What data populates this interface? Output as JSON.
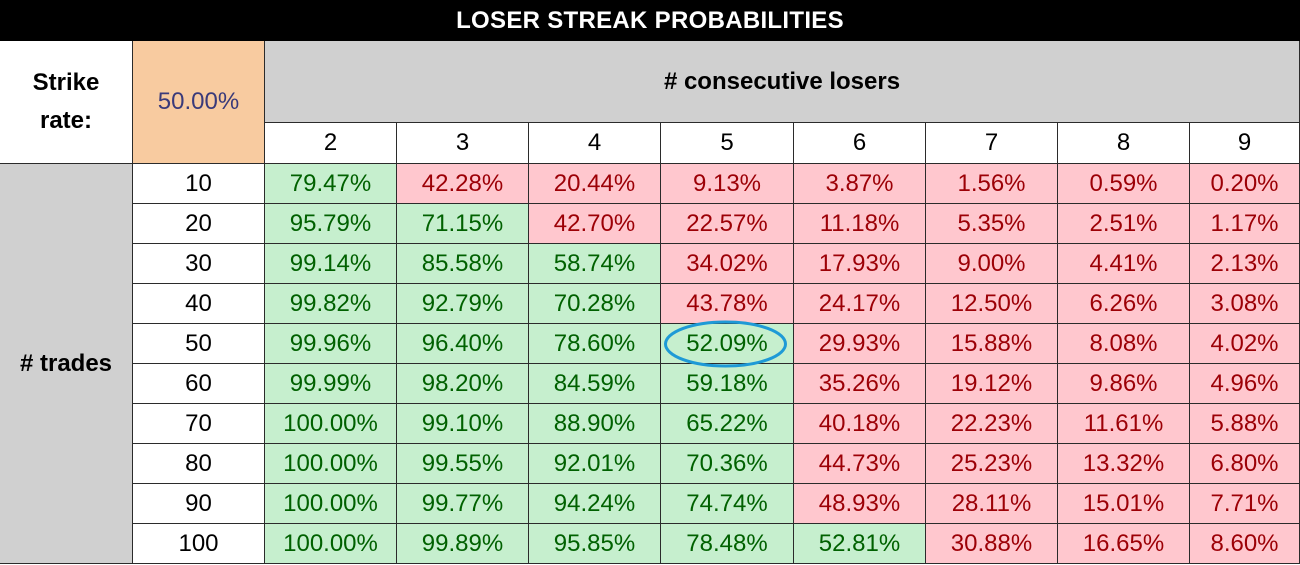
{
  "title": "LOSER STREAK PROBABILITIES",
  "strike_rate_label": "Strike rate:",
  "strike_rate_value": "50.00%",
  "column_group_label": "# consecutive losers",
  "row_group_label": "# trades",
  "colors": {
    "positive_bg": "#c6efce",
    "positive_text": "#006100",
    "negative_bg": "#ffc7ce",
    "negative_text": "#9c0006",
    "highlight": "#1e9ad6"
  },
  "highlighted_cell": {
    "trades": "50",
    "losers": "5"
  },
  "chart_data": {
    "type": "table",
    "title": "LOSER STREAK PROBABILITIES",
    "columns": [
      "2",
      "3",
      "4",
      "5",
      "6",
      "7",
      "8",
      "9"
    ],
    "rows": [
      {
        "trades": "10",
        "values": [
          "79.47%",
          "42.28%",
          "20.44%",
          "9.13%",
          "3.87%",
          "1.56%",
          "0.59%",
          "0.20%"
        ],
        "positive_count": 1
      },
      {
        "trades": "20",
        "values": [
          "95.79%",
          "71.15%",
          "42.70%",
          "22.57%",
          "11.18%",
          "5.35%",
          "2.51%",
          "1.17%"
        ],
        "positive_count": 2
      },
      {
        "trades": "30",
        "values": [
          "99.14%",
          "85.58%",
          "58.74%",
          "34.02%",
          "17.93%",
          "9.00%",
          "4.41%",
          "2.13%"
        ],
        "positive_count": 3
      },
      {
        "trades": "40",
        "values": [
          "99.82%",
          "92.79%",
          "70.28%",
          "43.78%",
          "24.17%",
          "12.50%",
          "6.26%",
          "3.08%"
        ],
        "positive_count": 3
      },
      {
        "trades": "50",
        "values": [
          "99.96%",
          "96.40%",
          "78.60%",
          "52.09%",
          "29.93%",
          "15.88%",
          "8.08%",
          "4.02%"
        ],
        "positive_count": 4
      },
      {
        "trades": "60",
        "values": [
          "99.99%",
          "98.20%",
          "84.59%",
          "59.18%",
          "35.26%",
          "19.12%",
          "9.86%",
          "4.96%"
        ],
        "positive_count": 4
      },
      {
        "trades": "70",
        "values": [
          "100.00%",
          "99.10%",
          "88.90%",
          "65.22%",
          "40.18%",
          "22.23%",
          "11.61%",
          "5.88%"
        ],
        "positive_count": 4
      },
      {
        "trades": "80",
        "values": [
          "100.00%",
          "99.55%",
          "92.01%",
          "70.36%",
          "44.73%",
          "25.23%",
          "13.32%",
          "6.80%"
        ],
        "positive_count": 4
      },
      {
        "trades": "90",
        "values": [
          "100.00%",
          "99.77%",
          "94.24%",
          "74.74%",
          "48.93%",
          "28.11%",
          "15.01%",
          "7.71%"
        ],
        "positive_count": 4
      },
      {
        "trades": "100",
        "values": [
          "100.00%",
          "99.89%",
          "95.85%",
          "78.48%",
          "52.81%",
          "30.88%",
          "16.65%",
          "8.60%"
        ],
        "positive_count": 5
      }
    ]
  }
}
